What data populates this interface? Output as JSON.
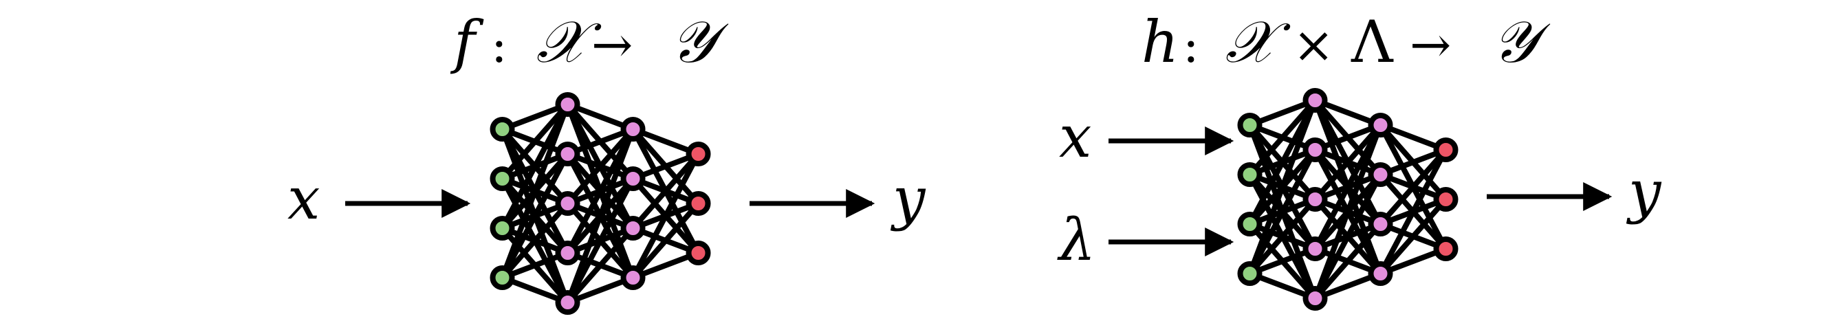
{
  "left_panel": {
    "title": {
      "fn": "f",
      "colon": ":",
      "domain": "𝒳",
      "arrow": "→",
      "codomain": "𝒴"
    },
    "input_label": "x",
    "output_label": "y"
  },
  "right_panel": {
    "title": {
      "fn": "h",
      "colon": ":",
      "domain": "𝒳",
      "times": "×",
      "param_space": "Λ",
      "arrow": "→",
      "codomain": "𝒴"
    },
    "input_label_1": "x",
    "input_label_2": "λ",
    "output_label": "y"
  },
  "network": {
    "layer_sizes": [
      4,
      5,
      4,
      3
    ],
    "node_colors": [
      "#90d080",
      "#e38fdc",
      "#e38fdc",
      "#ee5566"
    ],
    "edge_color": "#000000"
  }
}
